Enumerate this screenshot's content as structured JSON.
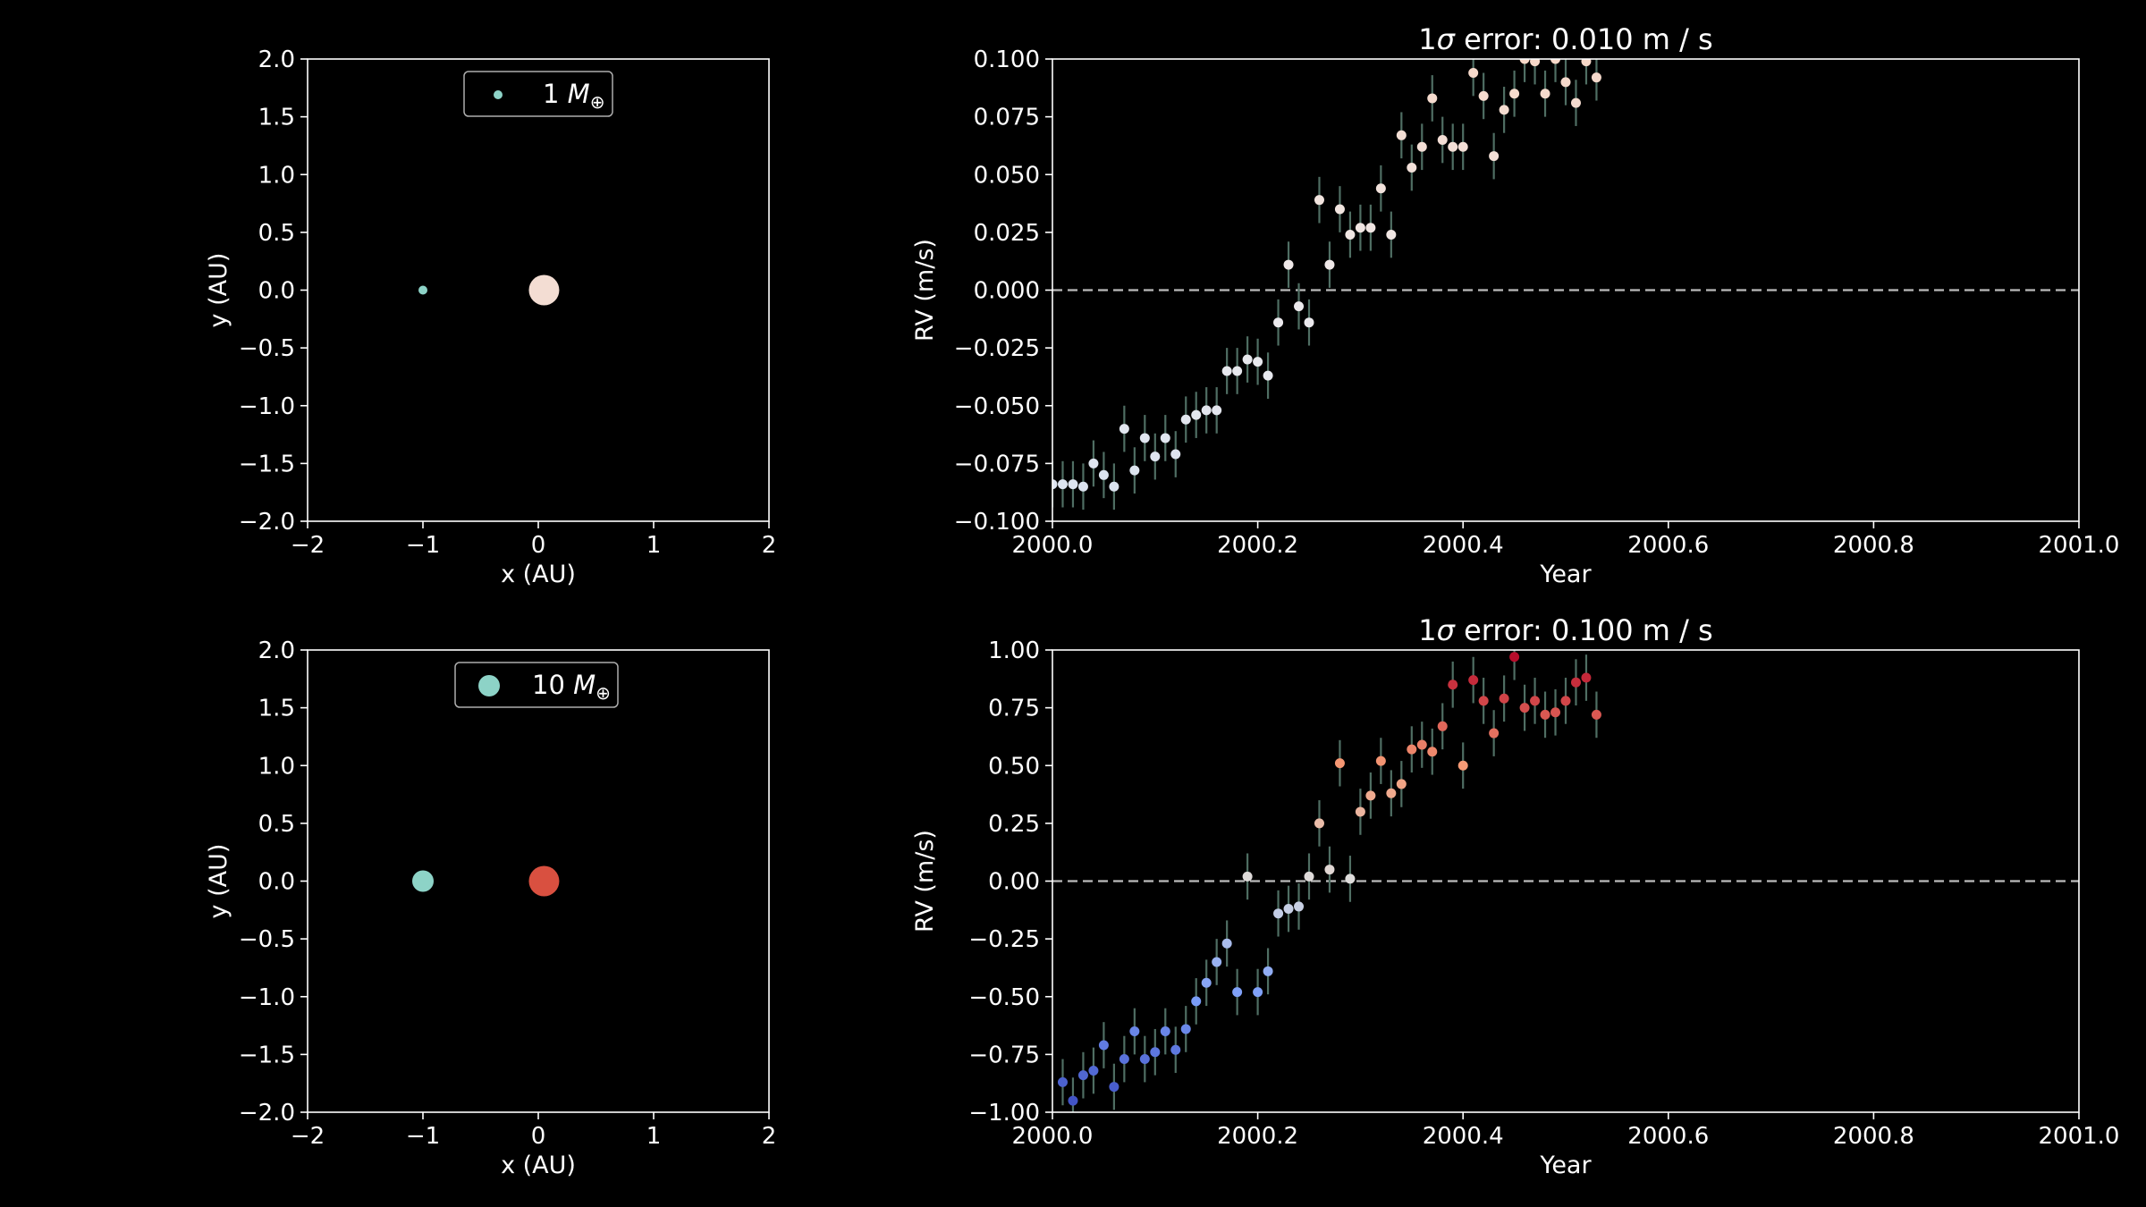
{
  "colors": {
    "background": "#000000",
    "foreground": "#ffffff",
    "planet": "#8dd3c7",
    "errorbar": "#4f6e63",
    "zero_line": "#bbbbbb"
  },
  "chart_data": [
    {
      "id": "orbit-top",
      "type": "scatter",
      "xlabel": "x (AU)",
      "ylabel": "y (AU)",
      "xlim": [
        -2,
        2
      ],
      "ylim": [
        -2,
        2
      ],
      "xticks": [
        -2,
        -1,
        0,
        1,
        2
      ],
      "xtick_labels": [
        "−2",
        "−1",
        "0",
        "1",
        "2"
      ],
      "yticks": [
        -2.0,
        -1.5,
        -1.0,
        -0.5,
        0.0,
        0.5,
        1.0,
        1.5,
        2.0
      ],
      "ytick_labels": [
        "−2.0",
        "−1.5",
        "−1.0",
        "−0.5",
        "0.0",
        "0.5",
        "1.0",
        "1.5",
        "2.0"
      ],
      "legend": {
        "label": "1",
        "symbol": "M",
        "subscript": "⊕",
        "placement": "top-center"
      },
      "points": [
        {
          "role": "planet",
          "x": -1.0,
          "y": 0.0,
          "color": "#8dd3c7",
          "size": 1
        },
        {
          "role": "star",
          "x": 0.05,
          "y": 0.0,
          "color": "#f3ddd3",
          "size": 3
        }
      ]
    },
    {
      "id": "rv-top",
      "type": "scatter",
      "title_prefix": "1",
      "title_symbol": "σ",
      "title_suffix": " error: 0.010 m / s",
      "xlabel": "Year",
      "ylabel": "RV (m/s)",
      "xlim": [
        2000.0,
        2001.0
      ],
      "ylim": [
        -0.1,
        0.1
      ],
      "xticks": [
        2000.0,
        2000.2,
        2000.4,
        2000.6,
        2000.8,
        2001.0
      ],
      "xtick_labels": [
        "2000.0",
        "2000.2",
        "2000.4",
        "2000.6",
        "2000.8",
        "2001.0"
      ],
      "yticks": [
        -0.1,
        -0.075,
        -0.05,
        -0.025,
        0.0,
        0.025,
        0.05,
        0.075,
        0.1
      ],
      "ytick_labels": [
        "−0.100",
        "−0.075",
        "−0.050",
        "−0.025",
        "0.000",
        "0.025",
        "0.050",
        "0.075",
        "0.100"
      ],
      "zero_line": 0.0,
      "error": 0.01,
      "color_range": [
        -0.1,
        0.1
      ],
      "colormap": "coolwarm-pale",
      "x": [
        2000.0,
        2000.01,
        2000.02,
        2000.03,
        2000.04,
        2000.05,
        2000.06,
        2000.07,
        2000.08,
        2000.09,
        2000.1,
        2000.11,
        2000.12,
        2000.13,
        2000.14,
        2000.15,
        2000.16,
        2000.17,
        2000.18,
        2000.19,
        2000.2,
        2000.21,
        2000.22,
        2000.23,
        2000.24,
        2000.25,
        2000.26,
        2000.27,
        2000.28,
        2000.29,
        2000.3,
        2000.31,
        2000.32,
        2000.33,
        2000.34,
        2000.35,
        2000.36,
        2000.37,
        2000.38,
        2000.39,
        2000.4,
        2000.41,
        2000.42,
        2000.43,
        2000.44,
        2000.45,
        2000.46,
        2000.47,
        2000.48,
        2000.49,
        2000.5,
        2000.51,
        2000.52,
        2000.53
      ],
      "y": [
        -0.084,
        -0.084,
        -0.084,
        -0.085,
        -0.075,
        -0.08,
        -0.085,
        -0.06,
        -0.078,
        -0.064,
        -0.072,
        -0.064,
        -0.071,
        -0.056,
        -0.054,
        -0.052,
        -0.052,
        -0.035,
        -0.035,
        -0.03,
        -0.031,
        -0.037,
        -0.014,
        0.011,
        -0.007,
        -0.014,
        0.039,
        0.011,
        0.035,
        0.024,
        0.027,
        0.027,
        0.044,
        0.024,
        0.067,
        0.053,
        0.062,
        0.083,
        0.065,
        0.062,
        0.062,
        0.094,
        0.084,
        0.058,
        0.078,
        0.085,
        0.1,
        0.099,
        0.085,
        0.1,
        0.09,
        0.081,
        0.099,
        0.092
      ]
    },
    {
      "id": "orbit-bottom",
      "type": "scatter",
      "xlabel": "x (AU)",
      "ylabel": "y (AU)",
      "xlim": [
        -2,
        2
      ],
      "ylim": [
        -2,
        2
      ],
      "xticks": [
        -2,
        -1,
        0,
        1,
        2
      ],
      "xtick_labels": [
        "−2",
        "−1",
        "0",
        "1",
        "2"
      ],
      "yticks": [
        -2.0,
        -1.5,
        -1.0,
        -0.5,
        0.0,
        0.5,
        1.0,
        1.5,
        2.0
      ],
      "ytick_labels": [
        "−2.0",
        "−1.5",
        "−1.0",
        "−0.5",
        "0.0",
        "0.5",
        "1.0",
        "1.5",
        "2.0"
      ],
      "legend": {
        "label": "10",
        "symbol": "M",
        "subscript": "⊕",
        "placement": "top-center"
      },
      "points": [
        {
          "role": "planet",
          "x": -1.0,
          "y": 0.0,
          "color": "#8dd3c7",
          "size": 2
        },
        {
          "role": "star",
          "x": 0.05,
          "y": 0.0,
          "color": "#d95040",
          "size": 3
        }
      ]
    },
    {
      "id": "rv-bottom",
      "type": "scatter",
      "title_prefix": "1",
      "title_symbol": "σ",
      "title_suffix": " error: 0.100 m / s",
      "xlabel": "Year",
      "ylabel": "RV (m/s)",
      "xlim": [
        2000.0,
        2001.0
      ],
      "ylim": [
        -1.0,
        1.0
      ],
      "xticks": [
        2000.0,
        2000.2,
        2000.4,
        2000.6,
        2000.8,
        2001.0
      ],
      "xtick_labels": [
        "2000.0",
        "2000.2",
        "2000.4",
        "2000.6",
        "2000.8",
        "2001.0"
      ],
      "yticks": [
        -1.0,
        -0.75,
        -0.5,
        -0.25,
        0.0,
        0.25,
        0.5,
        0.75,
        1.0
      ],
      "ytick_labels": [
        "−1.00",
        "−0.75",
        "−0.50",
        "−0.25",
        "0.00",
        "0.25",
        "0.50",
        "0.75",
        "1.00"
      ],
      "zero_line": 0.0,
      "error": 0.1,
      "color_range": [
        -1.0,
        1.0
      ],
      "colormap": "coolwarm",
      "x": [
        2000.01,
        2000.02,
        2000.03,
        2000.04,
        2000.05,
        2000.06,
        2000.07,
        2000.08,
        2000.09,
        2000.1,
        2000.11,
        2000.12,
        2000.13,
        2000.14,
        2000.15,
        2000.16,
        2000.17,
        2000.18,
        2000.19,
        2000.2,
        2000.21,
        2000.22,
        2000.23,
        2000.24,
        2000.25,
        2000.26,
        2000.27,
        2000.28,
        2000.29,
        2000.3,
        2000.31,
        2000.32,
        2000.33,
        2000.34,
        2000.35,
        2000.36,
        2000.37,
        2000.38,
        2000.39,
        2000.4,
        2000.41,
        2000.42,
        2000.43,
        2000.44,
        2000.45,
        2000.46,
        2000.47,
        2000.48,
        2000.49,
        2000.5,
        2000.51,
        2000.52,
        2000.53
      ],
      "y": [
        -0.87,
        -0.95,
        -0.84,
        -0.82,
        -0.71,
        -0.89,
        -0.77,
        -0.65,
        -0.77,
        -0.74,
        -0.65,
        -0.73,
        -0.64,
        -0.52,
        -0.44,
        -0.35,
        -0.27,
        -0.48,
        0.02,
        -0.48,
        -0.39,
        -0.14,
        -0.12,
        -0.11,
        0.02,
        0.25,
        0.05,
        0.51,
        0.01,
        0.3,
        0.37,
        0.52,
        0.38,
        0.42,
        0.57,
        0.59,
        0.56,
        0.67,
        0.85,
        0.5,
        0.87,
        0.78,
        0.64,
        0.79,
        0.97,
        0.75,
        0.78,
        0.72,
        0.73,
        0.78,
        0.86,
        0.88,
        0.72
      ]
    }
  ]
}
